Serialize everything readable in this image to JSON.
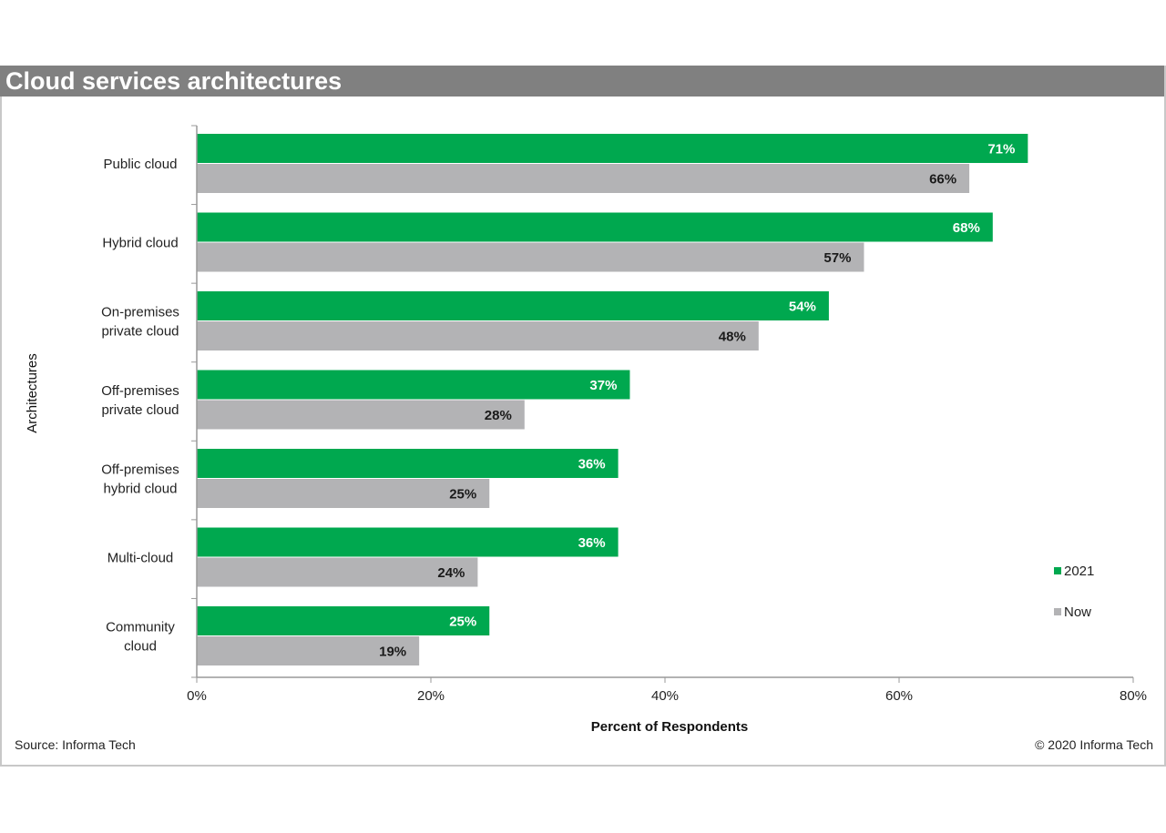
{
  "title": "Cloud services architectures",
  "source": "Source: Informa Tech",
  "copyright": "© 2020 Informa Tech",
  "colors": {
    "series_2021": "#00a84f",
    "series_now": "#b3b3b5",
    "title_bar": "#808080"
  },
  "chart_data": {
    "type": "bar",
    "orientation": "horizontal",
    "categories": [
      [
        "Public cloud"
      ],
      [
        "Hybrid cloud"
      ],
      [
        "On-premises",
        "private cloud"
      ],
      [
        "Off-premises",
        "private cloud"
      ],
      [
        "Off-premises",
        "hybrid cloud"
      ],
      [
        "Multi-cloud"
      ],
      [
        "Community",
        "cloud"
      ]
    ],
    "series": [
      {
        "name": "2021",
        "values": [
          71,
          68,
          54,
          37,
          36,
          36,
          25
        ],
        "labels": [
          "71%",
          "68%",
          "54%",
          "37%",
          "36%",
          "36%",
          "25%"
        ]
      },
      {
        "name": "Now",
        "values": [
          66,
          57,
          48,
          28,
          25,
          24,
          19
        ],
        "labels": [
          "66%",
          "57%",
          "48%",
          "28%",
          "25%",
          "24%",
          "19%"
        ]
      }
    ],
    "xlabel": "Percent of Respondents",
    "ylabel": "Architectures",
    "xlim": [
      0,
      80
    ],
    "xticks": [
      0,
      20,
      40,
      60,
      80
    ],
    "xtick_labels": [
      "0%",
      "20%",
      "40%",
      "60%",
      "80%"
    ],
    "grid": false,
    "legend": "right"
  }
}
